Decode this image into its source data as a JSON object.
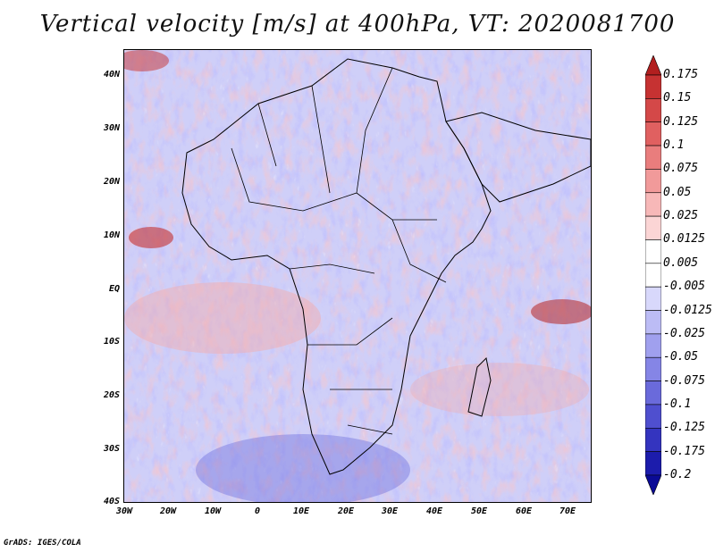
{
  "title": "Vertical velocity [m/s] at 400hPa, VT: 2020081700",
  "footer": "GrADS: IGES/COLA",
  "lat_labels": [
    "40N",
    "30N",
    "20N",
    "10N",
    "EQ",
    "10S",
    "20S",
    "30S",
    "40S"
  ],
  "lon_labels": [
    "30W",
    "20W",
    "10W",
    "0",
    "10E",
    "20E",
    "30E",
    "40E",
    "50E",
    "60E",
    "70E"
  ],
  "colorbar": {
    "labels": [
      "0.175",
      "0.15",
      "0.125",
      "0.1",
      "0.075",
      "0.05",
      "0.025",
      "0.0125",
      "0.005",
      "-0.005",
      "-0.0125",
      "-0.025",
      "-0.05",
      "-0.075",
      "-0.1",
      "-0.125",
      "-0.175",
      "-0.2"
    ],
    "colors": [
      "#b21f1f",
      "#c63232",
      "#d44848",
      "#e06060",
      "#e97d7d",
      "#f19a9a",
      "#f7b8b8",
      "#fbd5d5",
      "#ffffff",
      "#ffffff",
      "#d8d8fb",
      "#bcbcf5",
      "#a0a0ee",
      "#8585e6",
      "#6a6adb",
      "#4f4fcf",
      "#3434bf",
      "#1c1cac",
      "#0a0a96"
    ]
  }
}
